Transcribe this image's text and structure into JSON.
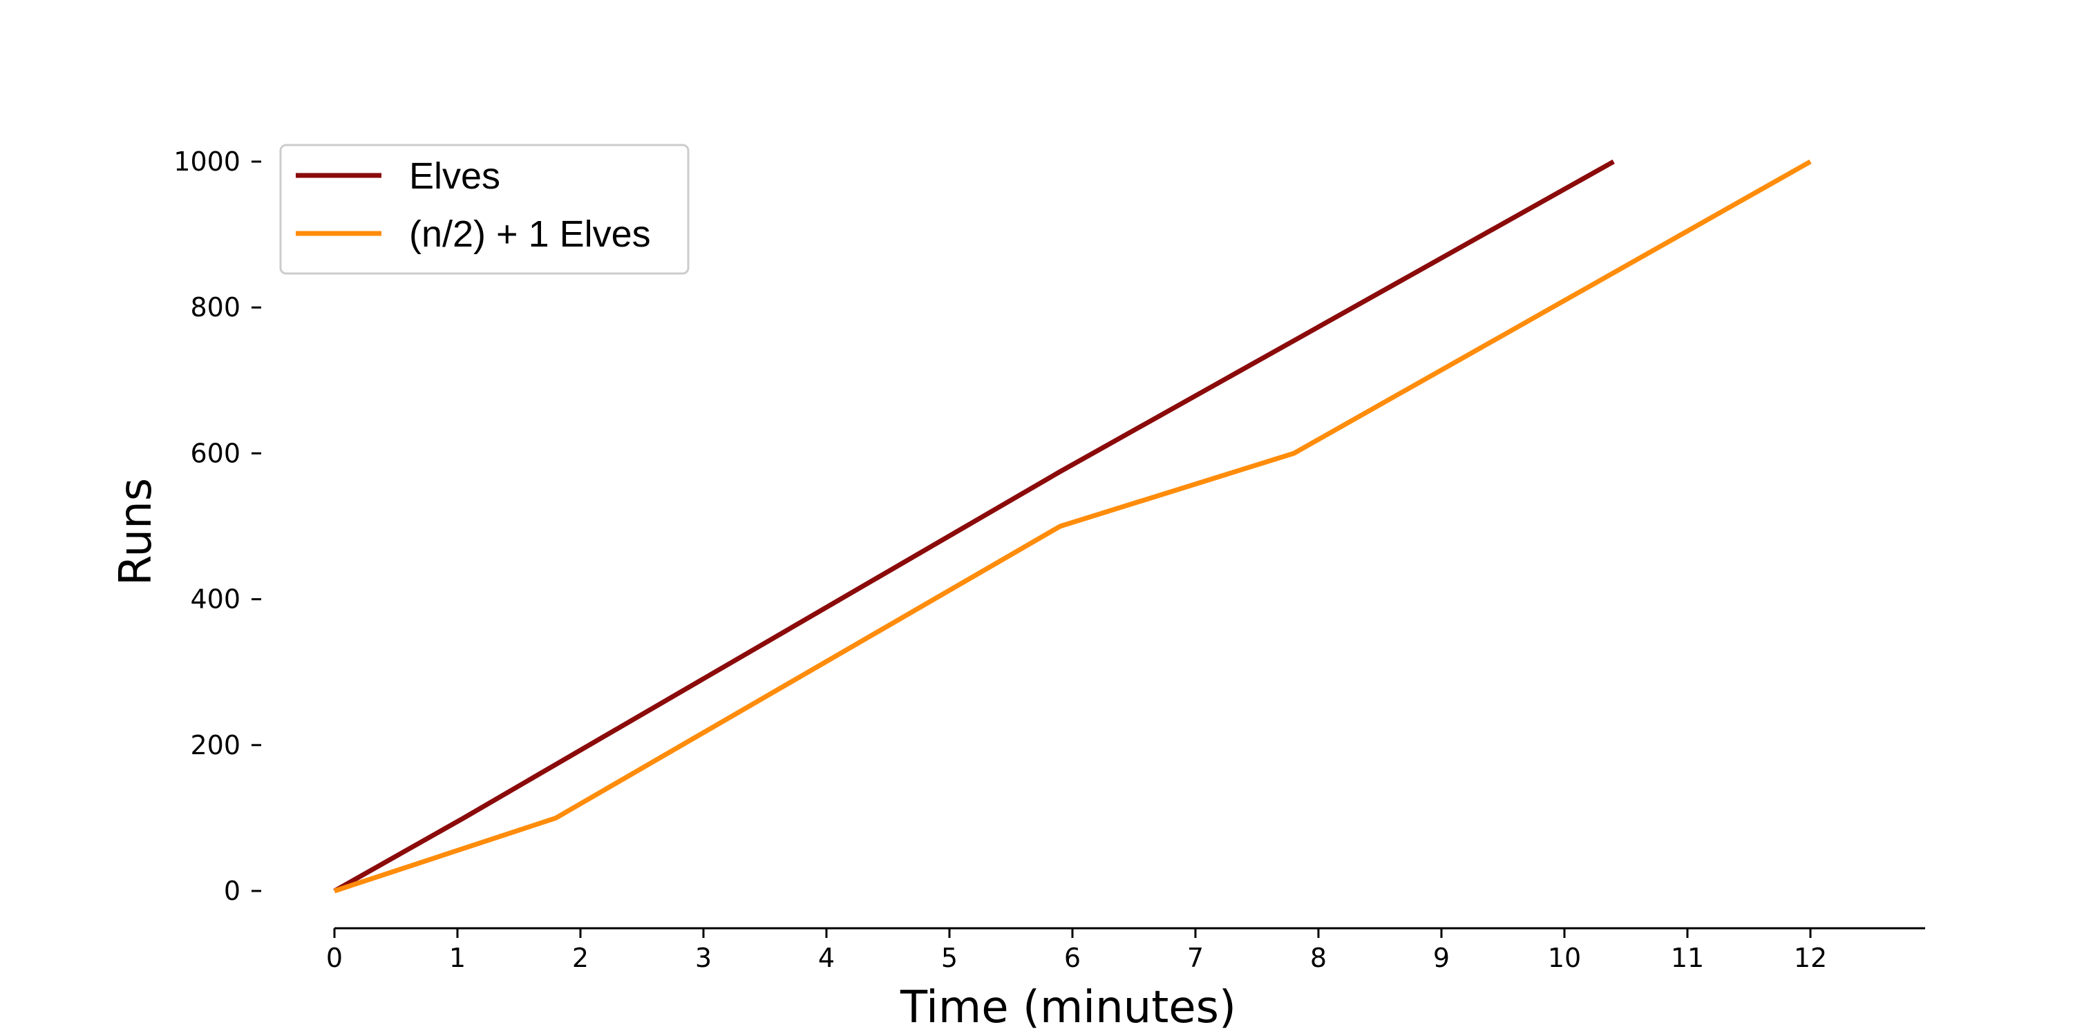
{
  "chart_data": {
    "type": "line",
    "title": "",
    "xlabel": "Time (minutes)",
    "ylabel": "Runs",
    "xlim": [
      0,
      13
    ],
    "ylim": [
      0,
      1000
    ],
    "xticks": [
      0,
      1,
      2,
      3,
      4,
      5,
      6,
      7,
      8,
      9,
      10,
      11,
      12
    ],
    "yticks": [
      0,
      200,
      400,
      600,
      800,
      1000
    ],
    "grid": false,
    "legend_position": "top-left",
    "series": [
      {
        "name": "Elves",
        "color": "#8b0a0a",
        "x": [
          0,
          1.05,
          5.9,
          10.4
        ],
        "y": [
          0,
          100,
          575,
          1000
        ]
      },
      {
        "name": "(n/2) + 1 Elves",
        "color": "#ff8c0a",
        "x": [
          0,
          1.8,
          5.9,
          7.8,
          12.0
        ],
        "y": [
          0,
          100,
          500,
          600,
          1000
        ]
      }
    ]
  }
}
